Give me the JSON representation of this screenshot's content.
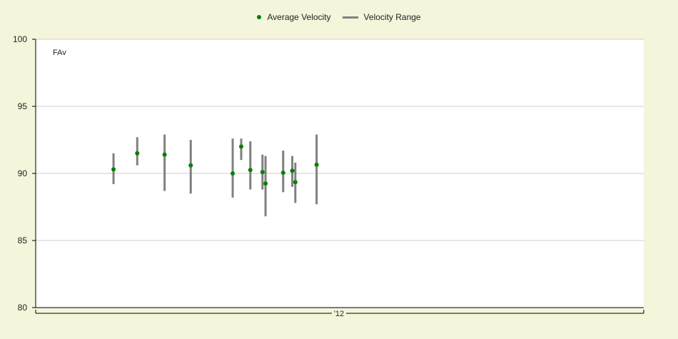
{
  "chart_data": {
    "type": "scatter",
    "title": "",
    "annotation": "FAv",
    "xlabel": "",
    "ylabel": "",
    "x_tick_label": "'12",
    "ylim": [
      80,
      100
    ],
    "y_ticks": [
      "100",
      "95",
      "90",
      "85",
      "80"
    ],
    "grid": true,
    "legend_position": "top-center",
    "colors": {
      "average": "#008000",
      "range": "#808080",
      "plot_background": "#ffffff",
      "page_background": "#f5f5dc",
      "gridline": "#cccccc"
    },
    "series": [
      {
        "name": "Average Velocity",
        "marker": "dot",
        "values": [
          90.3,
          91.5,
          91.4,
          90.6,
          90.0,
          92.0,
          90.25,
          90.1,
          89.25,
          90.05,
          90.2,
          89.35,
          90.65
        ]
      },
      {
        "name": "Velocity Range",
        "marker": "vertical-bar",
        "low": [
          89.2,
          90.6,
          88.7,
          88.5,
          88.2,
          91.0,
          88.8,
          88.8,
          86.8,
          88.6,
          89.0,
          87.8,
          87.7
        ],
        "high": [
          91.5,
          92.7,
          92.9,
          92.5,
          92.6,
          92.6,
          92.4,
          91.4,
          91.3,
          91.7,
          91.3,
          90.8,
          92.9
        ]
      }
    ],
    "x_positions": [
      0.128,
      0.167,
      0.212,
      0.255,
      0.324,
      0.338,
      0.353,
      0.373,
      0.378,
      0.407,
      0.422,
      0.427,
      0.462
    ]
  }
}
